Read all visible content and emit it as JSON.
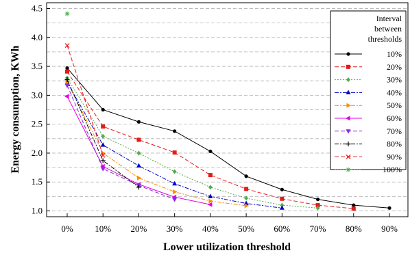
{
  "chart_data": {
    "type": "line",
    "title": "",
    "xlabel": "Lower utilization threshold",
    "ylabel": "Energy consumption, KWh",
    "categories": [
      "0%",
      "10%",
      "20%",
      "30%",
      "40%",
      "50%",
      "60%",
      "70%",
      "80%",
      "90%"
    ],
    "yticks": [
      "1.0",
      "1.5",
      "2.0",
      "2.5",
      "3.0",
      "3.5",
      "4.0",
      "4.5"
    ],
    "ylim": [
      0.9,
      4.6
    ],
    "grid": true,
    "legend": {
      "title_lines": [
        "Interval",
        "between",
        "thresholds"
      ],
      "placement": "top-right"
    },
    "series": [
      {
        "name": "10%",
        "color": "#000000",
        "marker": "circle",
        "dash": "solid",
        "values": [
          3.47,
          2.75,
          2.54,
          2.38,
          2.03,
          1.6,
          1.37,
          1.2,
          1.1,
          1.05
        ]
      },
      {
        "name": "20%",
        "color": "#e41a1c",
        "marker": "square",
        "dash": "dashed",
        "values": [
          3.41,
          2.46,
          2.23,
          2.01,
          1.62,
          1.38,
          1.21,
          1.1,
          1.04,
          null
        ]
      },
      {
        "name": "30%",
        "color": "#4daf4a",
        "marker": "diamond",
        "dash": "dotted",
        "values": [
          3.3,
          2.29,
          2.0,
          1.68,
          1.41,
          1.22,
          1.1,
          1.05,
          null,
          null
        ]
      },
      {
        "name": "40%",
        "color": "#0000cc",
        "marker": "triangle-up",
        "dash": "dashdot",
        "values": [
          3.22,
          2.14,
          1.78,
          1.47,
          1.25,
          1.13,
          1.05,
          null,
          null,
          null
        ]
      },
      {
        "name": "50%",
        "color": "#ff8c00",
        "marker": "triangle-right",
        "dash": "dashdot",
        "values": [
          3.23,
          2.0,
          1.57,
          1.33,
          1.17,
          1.09,
          null,
          null,
          null,
          null
        ]
      },
      {
        "name": "60%",
        "color": "#e000e0",
        "marker": "triangle-left",
        "dash": "solid",
        "values": [
          2.98,
          1.77,
          1.46,
          1.24,
          1.11,
          null,
          null,
          null,
          null,
          null
        ]
      },
      {
        "name": "70%",
        "color": "#8a2be2",
        "marker": "triangle-down",
        "dash": "dashed",
        "values": [
          3.17,
          1.73,
          1.44,
          1.2,
          null,
          null,
          null,
          null,
          null,
          null
        ]
      },
      {
        "name": "80%",
        "color": "#000000",
        "marker": "plus",
        "dash": "dashdot",
        "values": [
          3.27,
          1.87,
          1.41,
          null,
          null,
          null,
          null,
          null,
          null,
          null
        ]
      },
      {
        "name": "90%",
        "color": "#e41a1c",
        "marker": "x",
        "dash": "dashed",
        "values": [
          3.86,
          1.96,
          null,
          null,
          null,
          null,
          null,
          null,
          null,
          null
        ]
      },
      {
        "name": "100%",
        "color": "#4daf4a",
        "marker": "asterisk",
        "dash": "dotted",
        "values": [
          4.41,
          null,
          null,
          null,
          null,
          null,
          null,
          null,
          null,
          null
        ]
      }
    ]
  }
}
